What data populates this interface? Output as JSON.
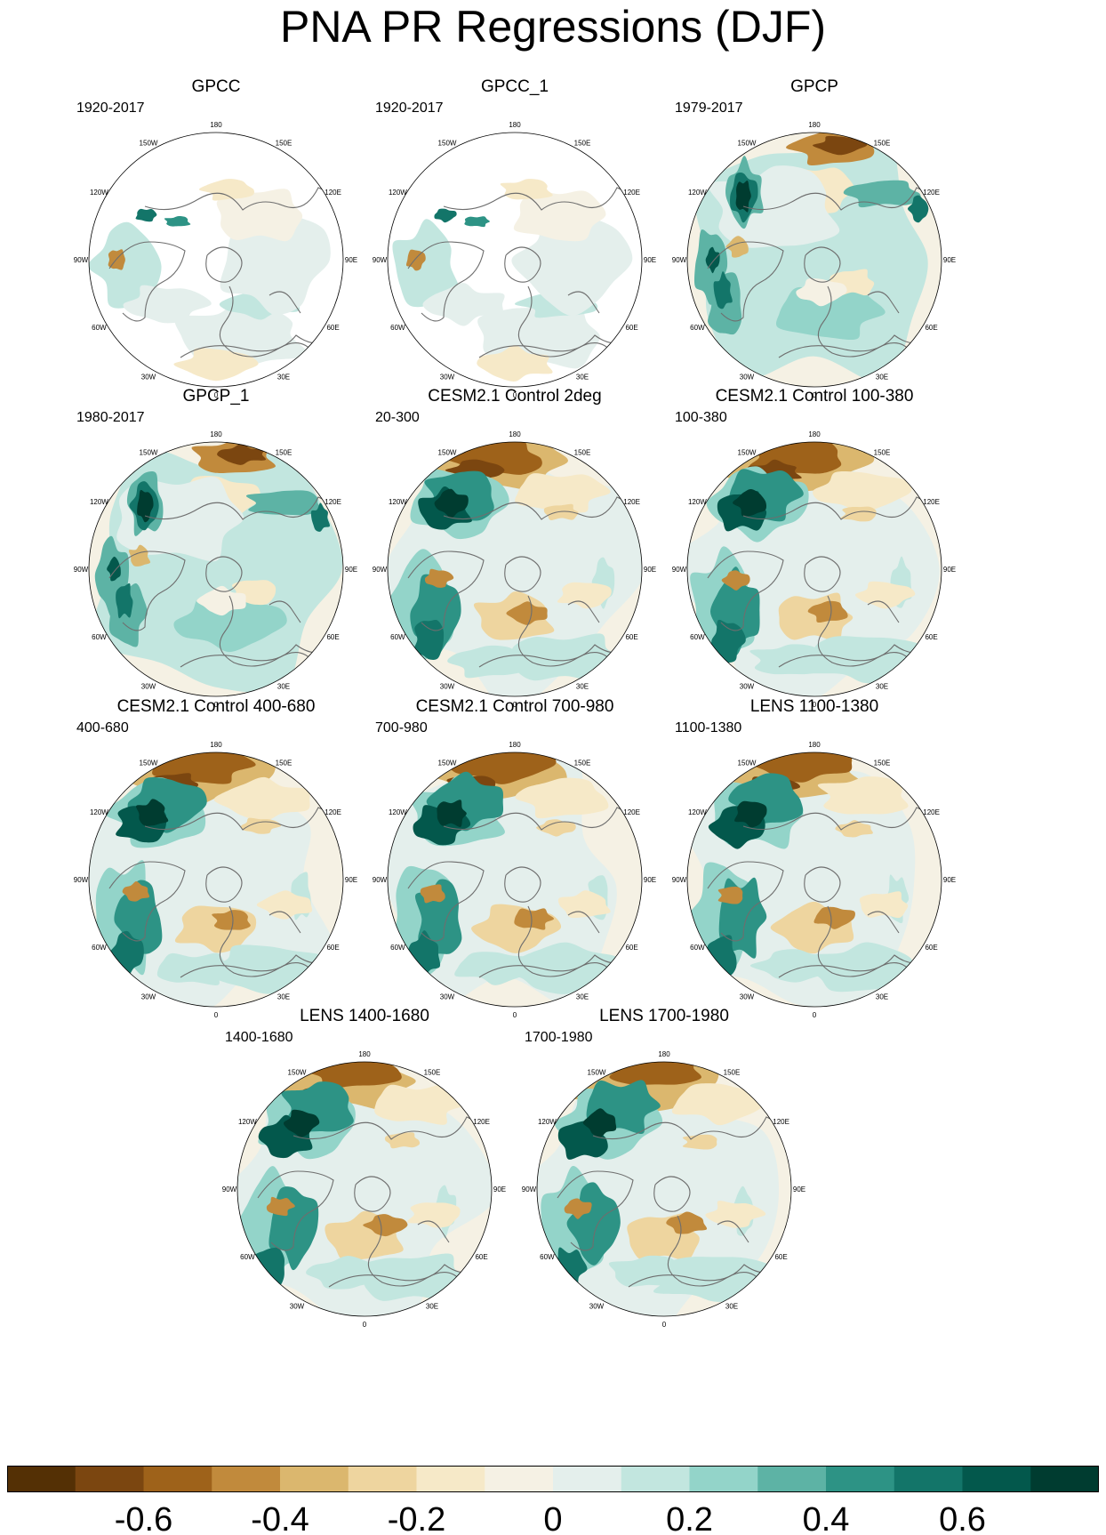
{
  "figure": {
    "title": "PNA PR Regressions (DJF)"
  },
  "panels": [
    {
      "title": "GPCC",
      "period": "1920-2017",
      "style": "gpcc"
    },
    {
      "title": "GPCC_1",
      "period": "1920-2017",
      "style": "gpcc"
    },
    {
      "title": "GPCP",
      "period": "1979-2017",
      "style": "gpcp"
    },
    {
      "title": "GPCP_1",
      "period": "1980-2017",
      "style": "gpcp"
    },
    {
      "title": "CESM2.1 Control 2deg",
      "period": "20-300",
      "style": "model"
    },
    {
      "title": "CESM2.1 Control 100-380",
      "period": "100-380",
      "style": "model"
    },
    {
      "title": "CESM2.1 Control 400-680",
      "period": "400-680",
      "style": "model"
    },
    {
      "title": "CESM2.1 Control 700-980",
      "period": "700-980",
      "style": "model"
    },
    {
      "title": "LENS 1100-1380",
      "period": "1100-1380",
      "style": "model"
    },
    {
      "title": "LENS 1400-1680",
      "period": "1400-1680",
      "style": "model"
    },
    {
      "title": "LENS 1700-1980",
      "period": "1700-1980",
      "style": "model"
    }
  ],
  "longitude_labels": [
    "180",
    "150E",
    "120E",
    "90E",
    "60E",
    "30E",
    "0",
    "30W",
    "60W",
    "90W",
    "120W",
    "150W"
  ],
  "colorbar": {
    "colors": [
      "#543005",
      "#7b4610",
      "#9e621a",
      "#c18a3c",
      "#dbb76e",
      "#eed59f",
      "#f6e9c8",
      "#f5f1e4",
      "#e4efec",
      "#c2e6df",
      "#93d4c9",
      "#5db3a5",
      "#2d9385",
      "#137569",
      "#03584c",
      "#003c30"
    ],
    "tick_values": [
      -0.6,
      -0.4,
      -0.2,
      0,
      0.2,
      0.4,
      0.6
    ],
    "tick_labels": [
      "-0.6",
      "-0.4",
      "-0.2",
      "0",
      "0.2",
      "0.4",
      "0.6"
    ],
    "range": [
      -0.8,
      0.8
    ]
  }
}
